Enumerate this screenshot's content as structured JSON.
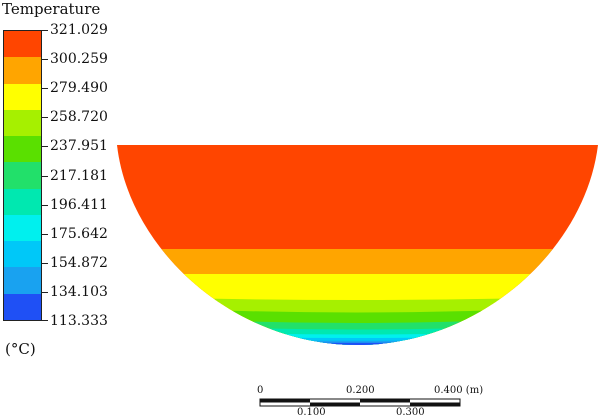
{
  "legend": {
    "title": "Temperature",
    "unit": "(°C)",
    "levels": [
      "321.029",
      "300.259",
      "279.490",
      "258.720",
      "237.951",
      "217.181",
      "196.411",
      "175.642",
      "154.872",
      "134.103",
      "113.333"
    ],
    "colors": [
      "#ff4500",
      "#ffa500",
      "#ffff00",
      "#a6f000",
      "#5ae000",
      "#22e06a",
      "#00e8b0",
      "#00f0ee",
      "#00c8f8",
      "#19a2f0",
      "#1f50f5"
    ]
  },
  "scale_bar": {
    "top_labels": [
      "0",
      "0.200",
      "0.400 (m)"
    ],
    "bottom_labels": [
      "0.100",
      "0.300"
    ]
  }
}
